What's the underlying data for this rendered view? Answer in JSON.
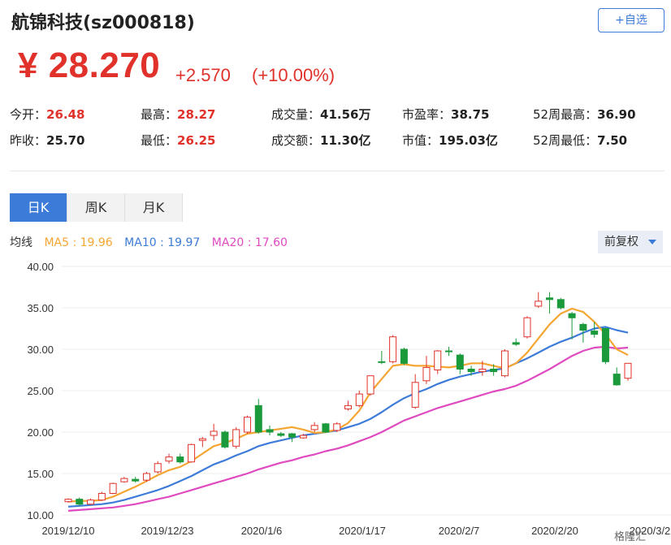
{
  "header": {
    "title": "航锦科技(sz000818)",
    "add_button": "+自选",
    "price": "¥ 28.270",
    "change": "+2.570",
    "change_pct": "(+10.00%)"
  },
  "stats": [
    {
      "label": "今开：",
      "value": "26.48",
      "color": "red"
    },
    {
      "label": "最高：",
      "value": "28.27",
      "color": "red"
    },
    {
      "label": "成交量：",
      "value": "41.56万",
      "color": "black"
    },
    {
      "label": "市盈率：",
      "value": "38.75",
      "color": "black"
    },
    {
      "label": "52周最高：",
      "value": "36.90",
      "color": "black"
    },
    {
      "label": "昨收：",
      "value": "25.70",
      "color": "black"
    },
    {
      "label": "最低：",
      "value": "26.25",
      "color": "red"
    },
    {
      "label": "成交额：",
      "value": "11.30亿",
      "color": "black"
    },
    {
      "label": "市值：",
      "value": "195.03亿",
      "color": "black"
    },
    {
      "label": "52周最低：",
      "value": "7.50",
      "color": "black"
    }
  ],
  "tabs": [
    "日K",
    "周K",
    "月K"
  ],
  "active_tab": "日K",
  "ma_legend": {
    "label": "均线",
    "ma5": "MA5 : 19.96",
    "ma10": "MA10 : 19.97",
    "ma20": "MA20 : 17.60"
  },
  "adjust_select": "前复权",
  "watermark": "格隆汇",
  "colors": {
    "up": "#e0322b",
    "down": "#1a9a3a",
    "ma5": "#f5a532",
    "ma10": "#3d7bd9",
    "ma20": "#e04ac0",
    "accent": "#3d7bd9"
  },
  "chart_data": {
    "type": "candlestick",
    "y_ticks": [
      "40.00",
      "35.00",
      "30.00",
      "25.00",
      "20.00",
      "15.00",
      "10.00"
    ],
    "ylim": [
      10,
      40
    ],
    "x_labels": [
      "2019/12/10",
      "2019/12/23",
      "2020/1/6",
      "2020/1/17",
      "2020/2/7",
      "2020/2/20",
      "2020/3/2"
    ],
    "candles": [
      {
        "o": 11.6,
        "c": 11.9,
        "h": 12.0,
        "l": 11.5
      },
      {
        "o": 11.9,
        "c": 11.3,
        "h": 12.1,
        "l": 11.1
      },
      {
        "o": 11.3,
        "c": 11.8,
        "h": 12.0,
        "l": 11.2
      },
      {
        "o": 11.8,
        "c": 12.6,
        "h": 12.8,
        "l": 11.7
      },
      {
        "o": 12.6,
        "c": 13.8,
        "h": 13.9,
        "l": 12.5
      },
      {
        "o": 14.0,
        "c": 14.4,
        "h": 14.6,
        "l": 13.9
      },
      {
        "o": 14.3,
        "c": 14.1,
        "h": 14.6,
        "l": 13.9
      },
      {
        "o": 14.2,
        "c": 15.0,
        "h": 15.2,
        "l": 14.0
      },
      {
        "o": 15.2,
        "c": 16.2,
        "h": 16.5,
        "l": 15.0
      },
      {
        "o": 16.5,
        "c": 17.0,
        "h": 17.4,
        "l": 16.2
      },
      {
        "o": 17.0,
        "c": 16.4,
        "h": 17.4,
        "l": 16.2
      },
      {
        "o": 16.4,
        "c": 18.5,
        "h": 18.6,
        "l": 16.3
      },
      {
        "o": 19.0,
        "c": 19.2,
        "h": 19.4,
        "l": 18.2
      },
      {
        "o": 19.6,
        "c": 20.1,
        "h": 21.0,
        "l": 19.0
      },
      {
        "o": 20.0,
        "c": 18.2,
        "h": 20.2,
        "l": 18.0
      },
      {
        "o": 18.3,
        "c": 20.3,
        "h": 20.6,
        "l": 18.0
      },
      {
        "o": 20.0,
        "c": 21.8,
        "h": 22.0,
        "l": 19.8
      },
      {
        "o": 23.2,
        "c": 20.0,
        "h": 24.0,
        "l": 19.8
      },
      {
        "o": 20.3,
        "c": 20.0,
        "h": 20.8,
        "l": 19.6
      },
      {
        "o": 19.8,
        "c": 19.6,
        "h": 20.0,
        "l": 19.4
      },
      {
        "o": 19.8,
        "c": 19.4,
        "h": 19.9,
        "l": 18.8
      },
      {
        "o": 19.3,
        "c": 19.6,
        "h": 19.8,
        "l": 19.2
      },
      {
        "o": 20.3,
        "c": 20.8,
        "h": 21.2,
        "l": 20.0
      },
      {
        "o": 21.0,
        "c": 20.0,
        "h": 21.1,
        "l": 19.9
      },
      {
        "o": 20.2,
        "c": 21.0,
        "h": 21.2,
        "l": 20.0
      },
      {
        "o": 22.8,
        "c": 23.2,
        "h": 23.8,
        "l": 22.6
      },
      {
        "o": 23.2,
        "c": 24.6,
        "h": 25.0,
        "l": 23.0
      },
      {
        "o": 24.6,
        "c": 26.8,
        "h": 26.8,
        "l": 24.4
      },
      {
        "o": 28.5,
        "c": 28.4,
        "h": 29.8,
        "l": 28.2
      },
      {
        "o": 28.5,
        "c": 31.5,
        "h": 31.7,
        "l": 28.3
      },
      {
        "o": 30.0,
        "c": 28.3,
        "h": 30.2,
        "l": 28.1
      },
      {
        "o": 23.0,
        "c": 26.0,
        "h": 27.0,
        "l": 22.8
      },
      {
        "o": 26.2,
        "c": 27.8,
        "h": 29.2,
        "l": 25.8
      },
      {
        "o": 27.5,
        "c": 29.8,
        "h": 29.9,
        "l": 27.0
      },
      {
        "o": 29.8,
        "c": 29.7,
        "h": 30.3,
        "l": 29.2
      },
      {
        "o": 29.3,
        "c": 27.6,
        "h": 29.5,
        "l": 27.0
      },
      {
        "o": 27.6,
        "c": 27.3,
        "h": 28.0,
        "l": 26.8
      },
      {
        "o": 27.3,
        "c": 27.6,
        "h": 28.6,
        "l": 26.8
      },
      {
        "o": 27.6,
        "c": 27.3,
        "h": 28.2,
        "l": 26.8
      },
      {
        "o": 26.8,
        "c": 29.8,
        "h": 30.0,
        "l": 26.6
      },
      {
        "o": 30.8,
        "c": 30.6,
        "h": 31.3,
        "l": 30.4
      },
      {
        "o": 31.5,
        "c": 33.8,
        "h": 34.0,
        "l": 31.3
      },
      {
        "o": 35.2,
        "c": 35.8,
        "h": 36.9,
        "l": 35.0
      },
      {
        "o": 36.2,
        "c": 36.0,
        "h": 36.9,
        "l": 34.3
      },
      {
        "o": 36.0,
        "c": 35.0,
        "h": 36.2,
        "l": 34.8
      },
      {
        "o": 34.3,
        "c": 33.8,
        "h": 34.5,
        "l": 31.2
      },
      {
        "o": 33.0,
        "c": 32.3,
        "h": 33.2,
        "l": 30.8
      },
      {
        "o": 32.2,
        "c": 31.8,
        "h": 33.3,
        "l": 31.4
      },
      {
        "o": 32.5,
        "c": 28.5,
        "h": 32.6,
        "l": 28.2
      },
      {
        "o": 27.0,
        "c": 25.7,
        "h": 27.8,
        "l": 25.6
      },
      {
        "o": 26.5,
        "c": 28.3,
        "h": 28.3,
        "l": 26.2
      }
    ],
    "ma5": [
      11.6,
      11.7,
      11.7,
      11.8,
      12.2,
      12.8,
      13.4,
      14.1,
      14.8,
      15.4,
      15.8,
      16.5,
      17.4,
      18.3,
      18.7,
      19.2,
      19.8,
      20.0,
      20.2,
      20.4,
      20.6,
      20.3,
      19.9,
      20.0,
      20.3,
      21.1,
      22.6,
      24.8,
      26.4,
      28.0,
      28.2,
      28.0,
      28.0,
      27.9,
      27.8,
      28.0,
      28.3,
      28.3,
      28.0,
      27.7,
      28.3,
      29.6,
      31.3,
      33.0,
      34.3,
      34.9,
      34.5,
      33.3,
      31.8,
      30.0,
      29.3
    ],
    "ma10": [
      11.0,
      11.1,
      11.2,
      11.3,
      11.5,
      11.8,
      12.2,
      12.6,
      13.0,
      13.5,
      14.1,
      14.7,
      15.4,
      16.1,
      16.6,
      17.2,
      17.7,
      18.3,
      18.7,
      19.0,
      19.3,
      19.6,
      19.8,
      20.0,
      20.2,
      20.6,
      21.0,
      21.6,
      22.4,
      23.3,
      24.1,
      24.7,
      25.2,
      25.8,
      26.3,
      26.7,
      27.0,
      27.3,
      27.5,
      27.7,
      28.3,
      28.9,
      29.6,
      30.3,
      30.9,
      31.4,
      32.0,
      32.5,
      32.7,
      32.3,
      32.0
    ],
    "ma20": [
      10.5,
      10.6,
      10.7,
      10.8,
      10.9,
      11.1,
      11.3,
      11.6,
      11.9,
      12.2,
      12.6,
      13.0,
      13.4,
      13.8,
      14.2,
      14.6,
      15.0,
      15.5,
      15.9,
      16.3,
      16.6,
      17.0,
      17.3,
      17.7,
      18.0,
      18.4,
      18.9,
      19.4,
      20.0,
      20.7,
      21.4,
      21.9,
      22.4,
      22.9,
      23.3,
      23.7,
      24.1,
      24.5,
      24.9,
      25.2,
      25.6,
      26.2,
      26.9,
      27.6,
      28.4,
      29.2,
      29.8,
      30.2,
      30.3,
      30.1,
      30.2
    ]
  }
}
